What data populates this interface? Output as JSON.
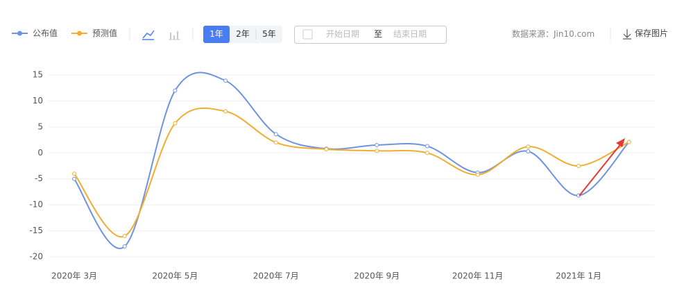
{
  "chart_data": {
    "type": "line",
    "categories": [
      "2020年 3月",
      null,
      "2020年 5月",
      null,
      "2020年 7月",
      null,
      "2020年 9月",
      null,
      "2020年 11月",
      null,
      "2021年 1月",
      null
    ],
    "series": [
      {
        "name": "公布值",
        "color": "#6f93e0",
        "values": [
          -5,
          -18,
          12,
          13.9,
          3.6,
          0.8,
          1.5,
          1.3,
          -3.8,
          0.3,
          -8.2,
          2.1
        ]
      },
      {
        "name": "预测值",
        "color": "#f0ad30",
        "values": [
          -4,
          -16,
          5.7,
          8,
          2,
          0.7,
          0.4,
          0,
          -4.2,
          1.2,
          -2.5,
          2.1
        ]
      }
    ],
    "ylim": [
      -20,
      15
    ],
    "yticks": [
      15,
      10,
      5,
      0,
      -5,
      -10,
      -15,
      -20
    ],
    "grid": true
  },
  "toolbar": {
    "ranges": [
      "1年",
      "2年",
      "5年"
    ],
    "start_date": "开始日期",
    "to": "至",
    "end_date": "结束日期",
    "source": "数据来源：Jin10.com",
    "save": "保存图片"
  }
}
